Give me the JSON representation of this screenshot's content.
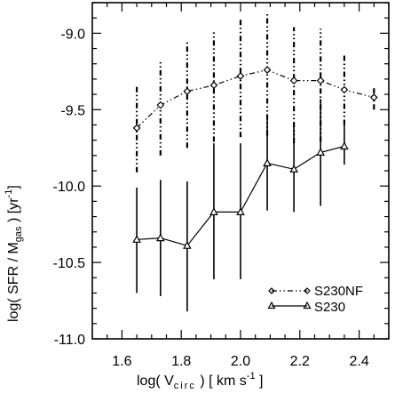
{
  "chart_data": {
    "type": "line",
    "xlabel": {
      "main": "log( V",
      "sub": "circ",
      "tail": " ) [ km s",
      "sup": "-1",
      "end": " ]"
    },
    "ylabel": {
      "main": "log( SFR / M",
      "sub": "gas",
      "mid": " )   [yr",
      "sup": "-1",
      "end": "]"
    },
    "xlim": [
      1.5,
      2.5
    ],
    "ylim": [
      -11.0,
      -8.8
    ],
    "xticks": [
      "1.6",
      "1.8",
      "2.0",
      "2.2",
      "2.4"
    ],
    "yticks": [
      "-9.0",
      "-9.5",
      "-10.0",
      "-10.5",
      "-11.0"
    ],
    "series": [
      {
        "name": "S230NF",
        "marker": "diamond",
        "line": "dash-dot-dot",
        "x": [
          1.65,
          1.73,
          1.82,
          1.91,
          2.0,
          2.09,
          2.18,
          2.27,
          2.35,
          2.45
        ],
        "y": [
          -9.62,
          -9.47,
          -9.38,
          -9.34,
          -9.28,
          -9.24,
          -9.31,
          -9.31,
          -9.37,
          -9.42
        ],
        "err_low": [
          -9.91,
          -9.8,
          -9.75,
          -9.71,
          -9.68,
          -9.67,
          -9.72,
          -9.71,
          -9.6,
          -9.5
        ],
        "err_high": [
          -9.35,
          -9.19,
          -9.05,
          -8.98,
          -8.9,
          -8.87,
          -8.96,
          -8.97,
          -9.13,
          -9.35
        ]
      },
      {
        "name": "S230",
        "marker": "triangle",
        "line": "solid",
        "x": [
          1.65,
          1.73,
          1.82,
          1.91,
          2.0,
          2.09,
          2.18,
          2.27,
          2.35
        ],
        "y": [
          -10.35,
          -10.34,
          -10.39,
          -10.17,
          -10.17,
          -9.85,
          -9.89,
          -9.78,
          -9.74
        ],
        "err_low": [
          -10.7,
          -10.72,
          -10.82,
          -10.61,
          -10.61,
          -10.16,
          -10.17,
          -10.13,
          -9.86
        ],
        "err_high": [
          -10.01,
          -9.96,
          -9.97,
          -9.72,
          -9.72,
          -9.53,
          -9.58,
          -9.43,
          -9.6
        ]
      }
    ],
    "legend": {
      "placement": "bottom-right"
    }
  }
}
